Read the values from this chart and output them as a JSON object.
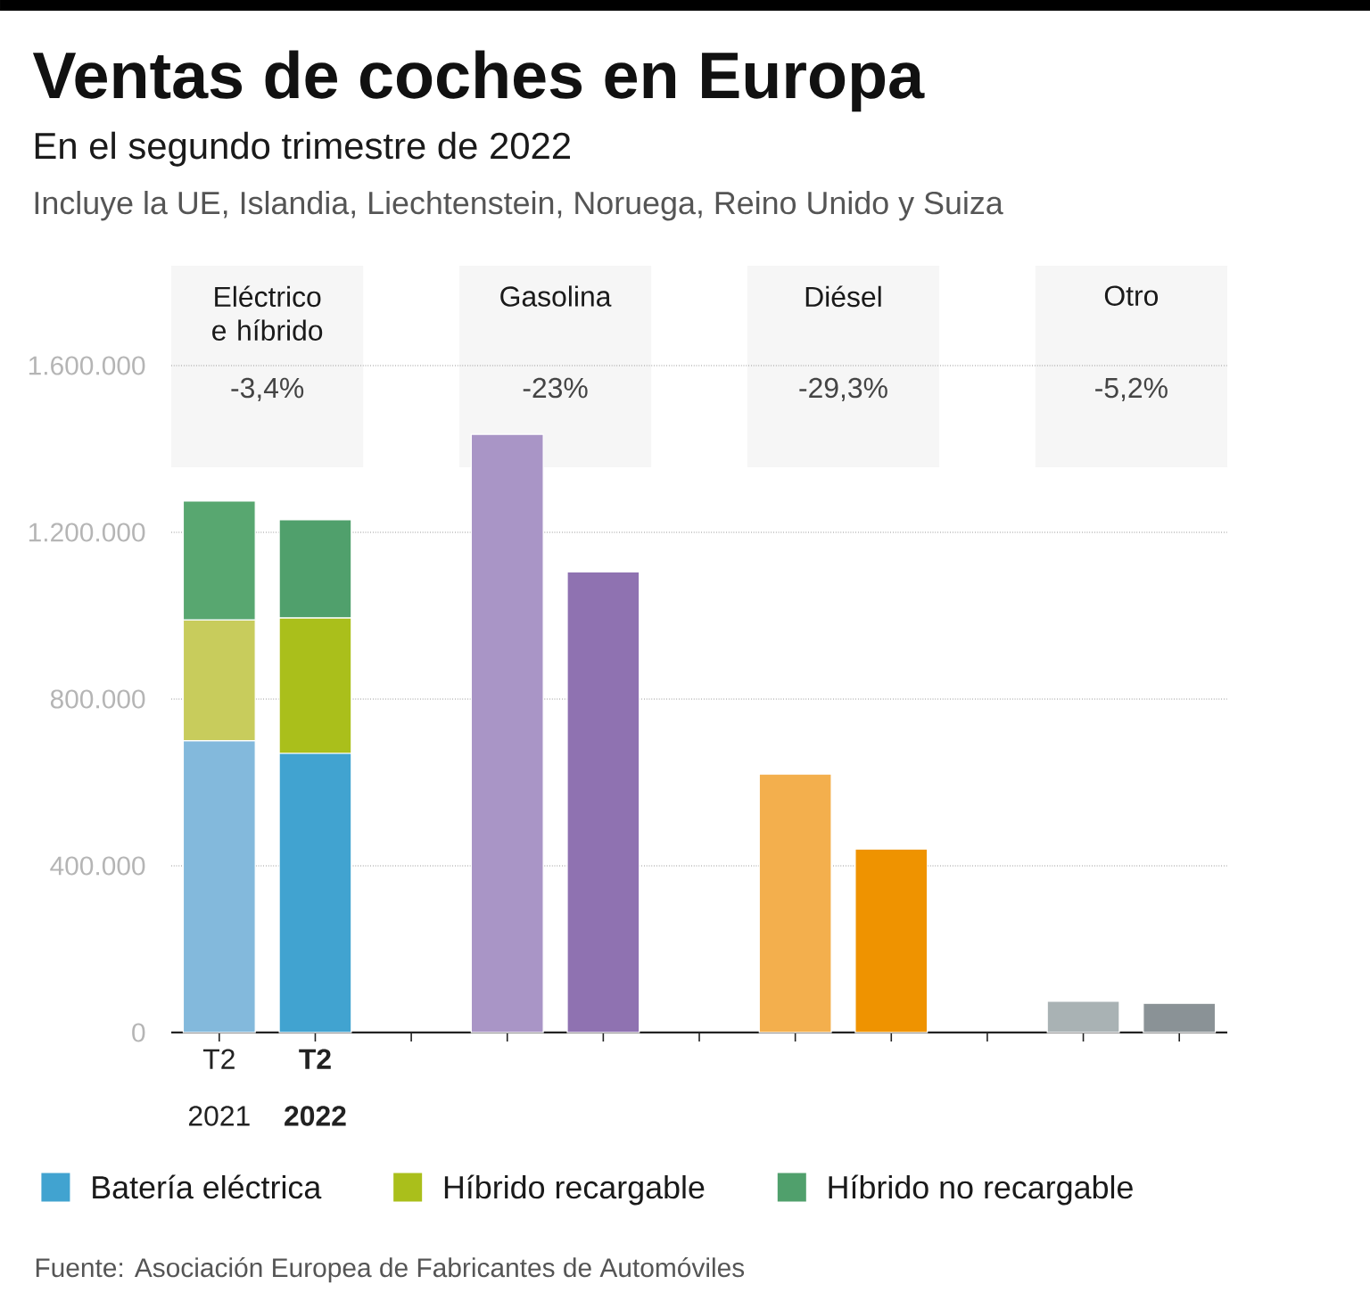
{
  "chart_data": {
    "type": "bar",
    "title": "Ventas de coches en Europa",
    "subtitle": "En el segundo trimestre de 2022",
    "categories": [
      "T2 2021",
      "**T2 2022**",
      null,
      null,
      null,
      null,
      null,
      null,
      null,
      null,
      null
    ],
    "stacked": true,
    "series": [
      {
        "name": "Batería eléctrica",
        "color": "#41a3d0",
        "colors": [
          "#83b9dc",
          "#41a3d0",
          null,
          null,
          null,
          null,
          null,
          null,
          null,
          null,
          null
        ],
        "values": [
          700000,
          670000,
          null,
          null,
          null,
          null,
          null,
          null,
          null,
          null,
          null
        ]
      },
      {
        "name": "Híbrido recargable",
        "color": "#aabf1b",
        "colors": [
          "#c8cc5c",
          "#aabf1b",
          null,
          null,
          null,
          null,
          null,
          null,
          null,
          null,
          null
        ],
        "values": [
          290000,
          325000,
          null,
          null,
          null,
          null,
          null,
          null,
          null,
          null,
          null
        ]
      },
      {
        "name": "Híbrido no recargable",
        "color": "#50a06c",
        "colors": [
          "#58a770",
          "#50a06c",
          null,
          null,
          null,
          null,
          null,
          null,
          null,
          null,
          null
        ],
        "values": [
          285000,
          235000,
          null,
          null,
          null,
          null,
          null,
          null,
          null,
          null,
          null
        ]
      },
      {
        "colors": [
          null,
          null,
          null,
          "#a995c6",
          "#8f72b1",
          null,
          null,
          null,
          null,
          null,
          null
        ],
        "values": [
          null,
          null,
          null,
          1435000,
          1105000,
          null,
          null,
          null,
          null,
          null,
          null
        ]
      },
      {
        "colors": [
          null,
          null,
          null,
          null,
          null,
          null,
          "#f3af4d",
          "#ef9300",
          null,
          null,
          null
        ],
        "values": [
          null,
          null,
          null,
          null,
          null,
          null,
          620000,
          440000,
          null,
          null,
          null
        ]
      },
      {
        "colors": [
          null,
          null,
          null,
          null,
          null,
          null,
          null,
          null,
          null,
          "#a9b2b4",
          "#8a9296"
        ],
        "values": [
          null,
          null,
          null,
          null,
          null,
          null,
          null,
          null,
          null,
          75000,
          70000
        ]
      }
    ],
    "ylim": [
      0,
      1600000
    ],
    "yticks": [
      0,
      {
        "value": 400000,
        "label": "400.000"
      },
      {
        "value": 800000,
        "label": "800.000"
      },
      {
        "value": 1200000,
        "label": "1.200.000"
      },
      {
        "value": 1600000,
        "label": "1.600.000"
      }
    ],
    "grid": "y",
    "legend": "bottom",
    "annotations": [
      "Incluye la UE, Islandia, Liechtenstein, Noruega, Reino Unido y Suiza",
      "Eléctrico e híbrido",
      "-3,4%",
      "Gasolina",
      "-23%",
      "Diésel",
      "-29,3%",
      "Otro",
      "-5,2%",
      "Fuente: Asociación Europea de Fabricantes de Automóviles"
    ]
  }
}
